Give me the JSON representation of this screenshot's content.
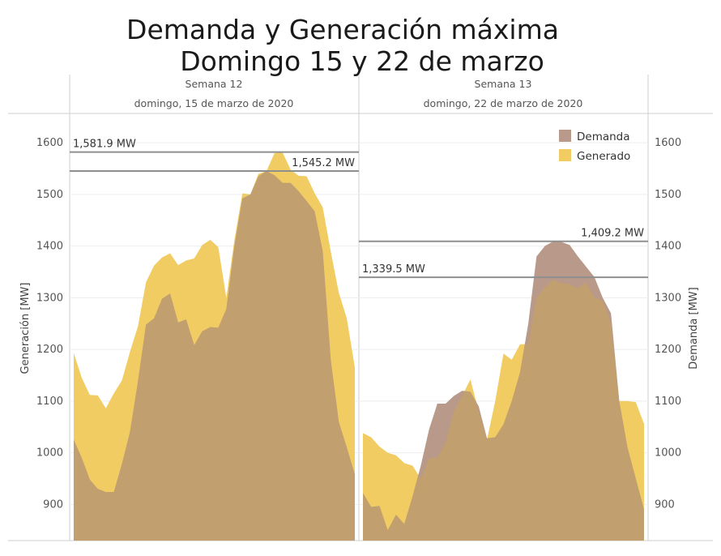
{
  "chart_data": {
    "type": "area",
    "title": "Demanda y Generación máxima",
    "subtitle": "Domingo 15 y 22 de marzo",
    "ylabel_left": "Generación [MW]",
    "ylabel_right": "Demanda [MW]",
    "ylim": [
      830,
      1655
    ],
    "yticks": [
      900,
      1000,
      1100,
      1200,
      1300,
      1400,
      1500,
      1600
    ],
    "legend": {
      "position": "top-right",
      "entries": [
        {
          "name": "Demanda",
          "color": "#b8998a"
        },
        {
          "name": "Generado",
          "color": "#f1cc63"
        }
      ]
    },
    "colors": {
      "demanda": "#b8998a",
      "generado": "#f1cc63",
      "overlap": "#c19f6e",
      "reference": "#8f8f8f"
    },
    "panels": [
      {
        "week": "Semana 12",
        "date": "domingo, 15 de marzo de 2020",
        "reference_lines": [
          {
            "label": "1,581.9 MW",
            "value": 1581.9
          },
          {
            "label": "1,545.2 MW",
            "value": 1545.2
          }
        ],
        "generado": [
          1193,
          1145,
          1112,
          1111,
          1086,
          1115,
          1140,
          1195,
          1245,
          1330,
          1362,
          1378,
          1386,
          1363,
          1372,
          1376,
          1402,
          1412,
          1398,
          1300,
          1411,
          1502,
          1500,
          1540,
          1545,
          1580,
          1581,
          1548,
          1536,
          1535,
          1502,
          1475,
          1390,
          1310,
          1260,
          1165
        ],
        "demanda": [
          1025,
          990,
          948,
          930,
          924,
          924,
          978,
          1040,
          1138,
          1248,
          1260,
          1298,
          1308,
          1252,
          1258,
          1208,
          1235,
          1243,
          1242,
          1278,
          1400,
          1492,
          1500,
          1535,
          1545,
          1537,
          1522,
          1522,
          1506,
          1487,
          1467,
          1390,
          1180,
          1060,
          1010,
          958
        ]
      },
      {
        "week": "Semana 13",
        "date": "domingo, 22 de marzo de 2020",
        "reference_lines": [
          {
            "label": "1,409.2 MW",
            "value": 1409.2
          },
          {
            "label": "1,339.5 MW",
            "value": 1339.5
          }
        ],
        "generado": [
          1038,
          1030,
          1012,
          1000,
          995,
          980,
          975,
          950,
          990,
          990,
          1020,
          1080,
          1110,
          1142,
          1080,
          1025,
          1100,
          1192,
          1180,
          1210,
          1210,
          1300,
          1320,
          1335,
          1328,
          1326,
          1318,
          1330,
          1300,
          1295,
          1250,
          1100,
          1100,
          1098,
          1056
        ],
        "demanda": [
          922,
          895,
          897,
          850,
          880,
          862,
          915,
          975,
          1045,
          1095,
          1095,
          1110,
          1120,
          1118,
          1090,
          1028,
          1030,
          1055,
          1100,
          1155,
          1250,
          1380,
          1400,
          1409,
          1408,
          1402,
          1380,
          1360,
          1340,
          1300,
          1270,
          1100,
          1010,
          950,
          890
        ]
      }
    ]
  }
}
